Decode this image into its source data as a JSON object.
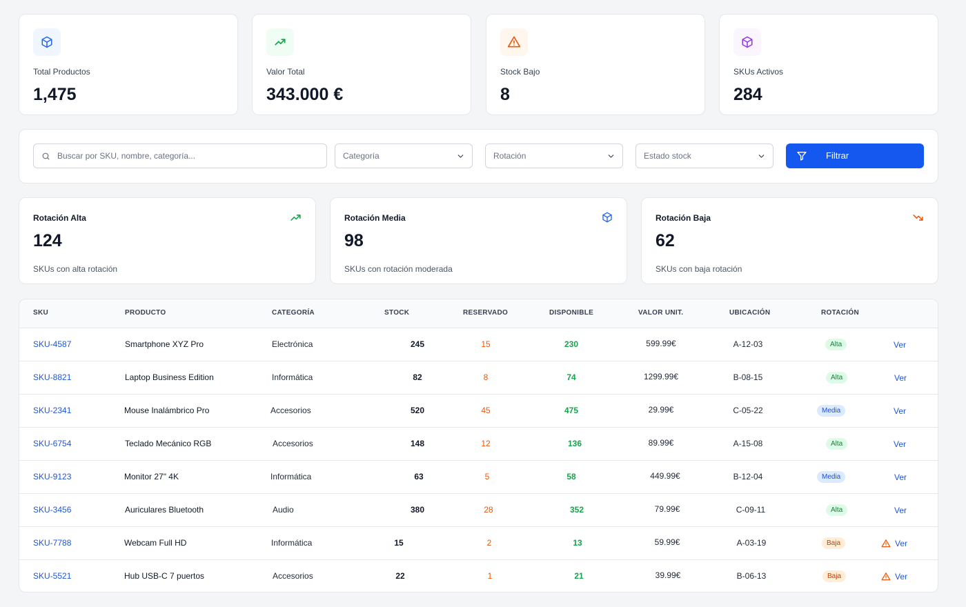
{
  "stats": [
    {
      "label": "Total Productos",
      "value": "1,475",
      "icon": "cube-icon",
      "color": "#2563eb"
    },
    {
      "label": "Valor Total",
      "value": "343.000 €",
      "icon": "trending-up-icon",
      "color": "#16a34a"
    },
    {
      "label": "Stock Bajo",
      "value": "8",
      "icon": "alert-triangle-icon",
      "color": "#ea580c"
    },
    {
      "label": "SKUs Activos",
      "value": "284",
      "icon": "cube-icon",
      "color": "#9333ea"
    }
  ],
  "filters": {
    "search_placeholder": "Buscar por SKU, nombre, categoría...",
    "category": "Categoría",
    "rotation": "Rotación",
    "stock_state": "Estado stock",
    "filter_button": "Filtrar"
  },
  "rotation": [
    {
      "title": "Rotación Alta",
      "value": "124",
      "subtitle": "SKUs con alta rotación",
      "icon": "trending-up-icon",
      "color": "#16a34a"
    },
    {
      "title": "Rotación Media",
      "value": "98",
      "subtitle": "SKUs con rotación moderada",
      "icon": "cube-icon",
      "color": "#2563eb"
    },
    {
      "title": "Rotación Baja",
      "value": "62",
      "subtitle": "SKUs con baja rotación",
      "icon": "trending-down-icon",
      "color": "#ea580c"
    }
  ],
  "table": {
    "headers": [
      "SKU",
      "PRODUCTO",
      "CATEGORÍA",
      "STOCK",
      "RESERVADO",
      "DISPONIBLE",
      "VALOR UNIT.",
      "UBICACIÓN",
      "ROTACIÓN"
    ],
    "action_label": "Ver",
    "rows": [
      {
        "sku": "SKU-4587",
        "product": "Smartphone XYZ Pro",
        "category": "Electrónica",
        "stock": "245",
        "reserved": "15",
        "available": "230",
        "unit_value": "599.99€",
        "location": "A-12-03",
        "rotation": "Alta",
        "warning": false
      },
      {
        "sku": "SKU-8821",
        "product": "Laptop Business Edition",
        "category": "Informática",
        "stock": "82",
        "reserved": "8",
        "available": "74",
        "unit_value": "1299.99€",
        "location": "B-08-15",
        "rotation": "Alta",
        "warning": false
      },
      {
        "sku": "SKU-2341",
        "product": "Mouse Inalámbrico Pro",
        "category": "Accesorios",
        "stock": "520",
        "reserved": "45",
        "available": "475",
        "unit_value": "29.99€",
        "location": "C-05-22",
        "rotation": "Media",
        "warning": false
      },
      {
        "sku": "SKU-6754",
        "product": "Teclado Mecánico RGB",
        "category": "Accesorios",
        "stock": "148",
        "reserved": "12",
        "available": "136",
        "unit_value": "89.99€",
        "location": "A-15-08",
        "rotation": "Alta",
        "warning": false
      },
      {
        "sku": "SKU-9123",
        "product": "Monitor 27\" 4K",
        "category": "Informática",
        "stock": "63",
        "reserved": "5",
        "available": "58",
        "unit_value": "449.99€",
        "location": "B-12-04",
        "rotation": "Media",
        "warning": false
      },
      {
        "sku": "SKU-3456",
        "product": "Auriculares Bluetooth",
        "category": "Audio",
        "stock": "380",
        "reserved": "28",
        "available": "352",
        "unit_value": "79.99€",
        "location": "C-09-11",
        "rotation": "Alta",
        "warning": false
      },
      {
        "sku": "SKU-7788",
        "product": "Webcam Full HD",
        "category": "Informática",
        "stock": "15",
        "reserved": "2",
        "available": "13",
        "unit_value": "59.99€",
        "location": "A-03-19",
        "rotation": "Baja",
        "warning": true
      },
      {
        "sku": "SKU-5521",
        "product": "Hub USB-C 7 puertos",
        "category": "Accesorios",
        "stock": "22",
        "reserved": "1",
        "available": "21",
        "unit_value": "39.99€",
        "location": "B-06-13",
        "rotation": "Baja",
        "warning": true
      }
    ]
  }
}
